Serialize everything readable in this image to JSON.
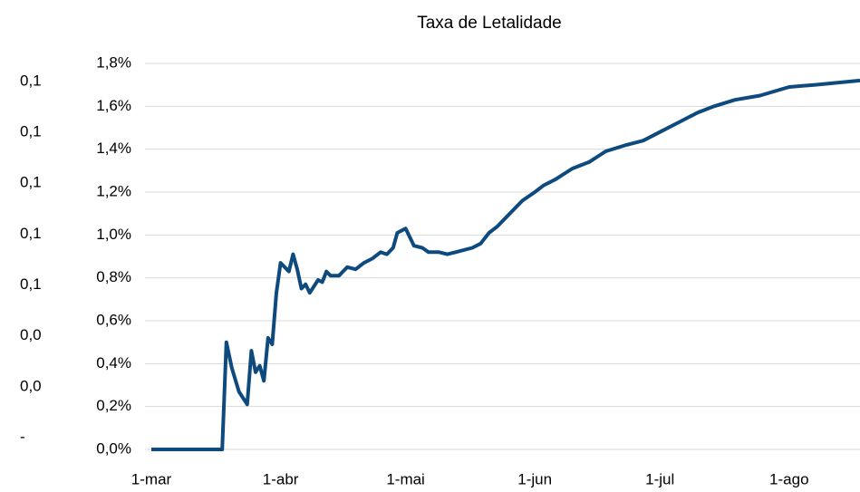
{
  "chart_data": {
    "type": "line",
    "title": "Taxa de Letalidade",
    "x": [
      0,
      17,
      18,
      19.3,
      21,
      23,
      24,
      25,
      26,
      27,
      28,
      29,
      30,
      31,
      33,
      34,
      35,
      36,
      37,
      38,
      40,
      41,
      42,
      43,
      45,
      47,
      49,
      51,
      53,
      55,
      56.5,
      58,
      59,
      61,
      63,
      65,
      66.5,
      69,
      71,
      73,
      77,
      79,
      81,
      83,
      86,
      89,
      92,
      94,
      97,
      101,
      105,
      109,
      114,
      118,
      122,
      127,
      131,
      135,
      140,
      146,
      153,
      159,
      170
    ],
    "values": [
      0,
      0,
      0.5,
      0.38,
      0.27,
      0.21,
      0.46,
      0.36,
      0.39,
      0.32,
      0.52,
      0.49,
      0.73,
      0.87,
      0.83,
      0.91,
      0.84,
      0.75,
      0.77,
      0.73,
      0.79,
      0.78,
      0.83,
      0.81,
      0.81,
      0.85,
      0.84,
      0.87,
      0.89,
      0.92,
      0.91,
      0.94,
      1.01,
      1.03,
      0.95,
      0.94,
      0.92,
      0.92,
      0.91,
      0.92,
      0.94,
      0.96,
      1.01,
      1.04,
      1.1,
      1.16,
      1.2,
      1.23,
      1.26,
      1.31,
      1.34,
      1.39,
      1.42,
      1.44,
      1.48,
      1.53,
      1.57,
      1.6,
      1.63,
      1.65,
      1.69,
      1.7,
      1.72
    ],
    "color": "#0e4a7e",
    "xlim": [
      0,
      170
    ],
    "xticks": [
      {
        "value": 0,
        "label": "1-mar"
      },
      {
        "value": 31,
        "label": "1-abr"
      },
      {
        "value": 61,
        "label": "1-mai"
      },
      {
        "value": 92,
        "label": "1-jun"
      },
      {
        "value": 122,
        "label": "1-jul"
      },
      {
        "value": 153,
        "label": "1-ago"
      }
    ],
    "ylim": [
      0,
      1.8
    ],
    "yticks": [
      {
        "value": 0,
        "label": "0,0%"
      },
      {
        "value": 0.2,
        "label": "0,2%"
      },
      {
        "value": 0.4,
        "label": "0,4%"
      },
      {
        "value": 0.6,
        "label": "0,6%"
      },
      {
        "value": 0.8,
        "label": "0,8%"
      },
      {
        "value": 1.0,
        "label": "1,0%"
      },
      {
        "value": 1.2,
        "label": "1,2%"
      },
      {
        "value": 1.4,
        "label": "1,4%"
      },
      {
        "value": 1.6,
        "label": "1,6%"
      },
      {
        "value": 1.8,
        "label": "1,8%"
      }
    ],
    "y2lim": [
      -0.0046,
      0.1471
    ],
    "y2ticks": [
      {
        "value": 0,
        "label": "-"
      },
      {
        "value": 0.02,
        "label": "0,0"
      },
      {
        "value": 0.04,
        "label": "0,0"
      },
      {
        "value": 0.06,
        "label": "0,1"
      },
      {
        "value": 0.08,
        "label": "0,1"
      },
      {
        "value": 0.1,
        "label": "0,1"
      },
      {
        "value": 0.12,
        "label": "0,1"
      },
      {
        "value": 0.14,
        "label": "0,1"
      }
    ],
    "grid": true
  }
}
